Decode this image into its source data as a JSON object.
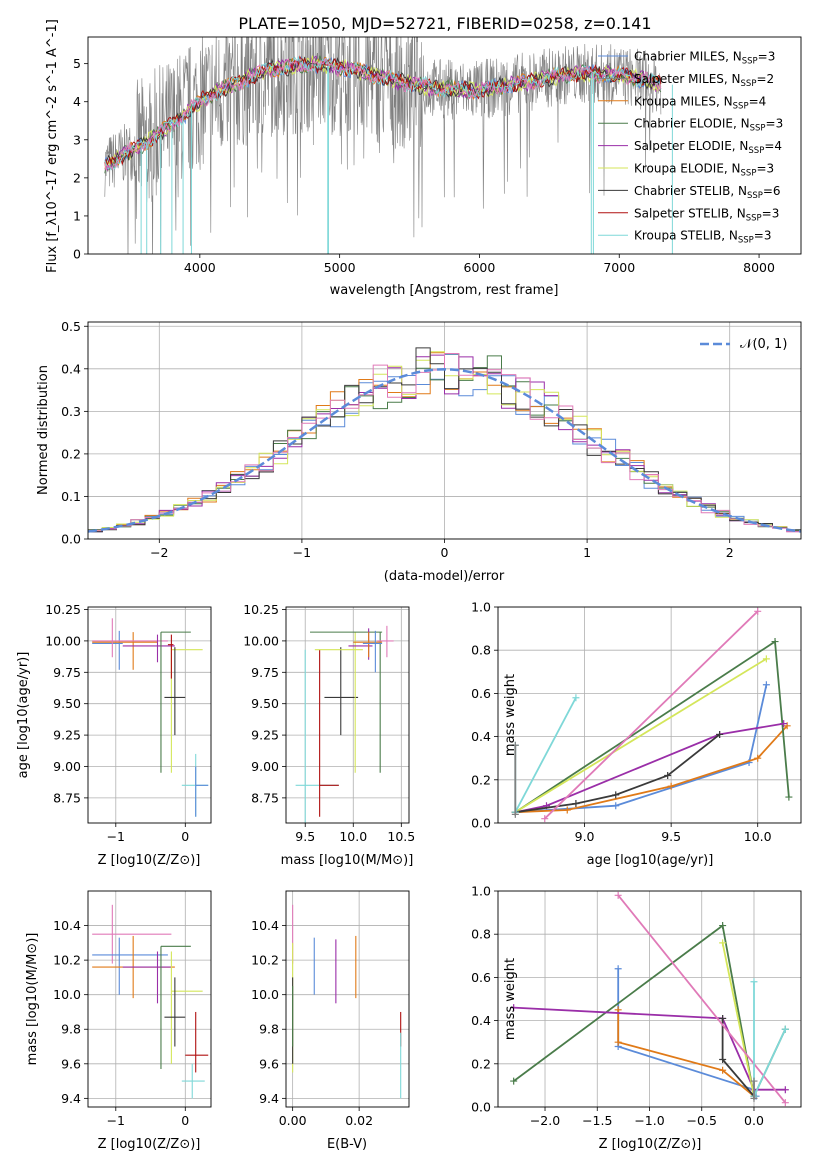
{
  "title": "PLATE=1050, MJD=52721, FIBERID=0258, z=0.141",
  "colors": {
    "Chabrier MILES": "#5b8bd9",
    "Salpeter MILES": "#808080",
    "Kroupa MILES": "#e07a18",
    "Chabrier ELODIE": "#4a7c4a",
    "Salpeter ELODIE": "#9a2ea8",
    "Kroupa ELODIE": "#d4e65a",
    "Chabrier STELIB": "#3a3a3a",
    "Salpeter STELIB": "#b01010",
    "Kroupa STELIB": "#7fd8d8",
    "pink": "#e07ab8"
  },
  "chart_data": [
    {
      "id": "spectrum",
      "type": "line",
      "xlabel": "wavelength [Angstrom, rest frame]",
      "ylabel": "Flux [f_λ10^-17 erg cm^-2 s^-1 A^-1]",
      "xlim": [
        3200,
        8300
      ],
      "ylim": [
        0,
        5.7
      ],
      "xticks": [
        4000,
        5000,
        6000,
        7000,
        8000
      ],
      "yticks": [
        0,
        1,
        2,
        3,
        4,
        5
      ],
      "legend_position": "upper right",
      "legend": [
        "Chabrier MILES, N_SSP=3",
        "Salpeter MILES, N_SSP=2",
        "Kroupa MILES, N_SSP=4",
        "Chabrier ELODIE, N_SSP=3",
        "Salpeter ELODIE, N_SSP=4",
        "Kroupa ELODIE, N_SSP=3",
        "Chabrier STELIB, N_SSP=6",
        "Salpeter STELIB, N_SSP=3",
        "Kroupa STELIB, N_SSP=3"
      ],
      "continuum": {
        "x": [
          3320,
          3450,
          3600,
          3800,
          4000,
          4200,
          4500,
          4800,
          5100,
          5400,
          5700,
          6000,
          6300,
          6600,
          6800,
          7000,
          7200,
          7300
        ],
        "y": [
          2.3,
          2.6,
          2.9,
          3.4,
          4.0,
          4.4,
          4.85,
          5.0,
          4.85,
          4.55,
          4.35,
          4.3,
          4.5,
          4.7,
          4.75,
          4.7,
          4.55,
          4.45
        ]
      }
    },
    {
      "id": "residuals",
      "type": "step",
      "xlabel": "(data-model)/error",
      "ylabel": "Normed distribution",
      "xlim": [
        -2.5,
        2.5
      ],
      "ylim": [
        0,
        0.51
      ],
      "xticks": [
        -2,
        -1,
        0,
        1,
        2
      ],
      "yticks": [
        0.0,
        0.1,
        0.2,
        0.3,
        0.4,
        0.5
      ],
      "legend": [
        "𝒩(0, 1)"
      ],
      "grid": true
    },
    {
      "id": "age_vs_Z",
      "type": "errorbar",
      "xlabel": "Z [log10(Z/Z⊙)]",
      "ylabel": "age [log10(age/yr)]",
      "xlim": [
        -1.4,
        0.37
      ],
      "ylim": [
        8.55,
        10.27
      ],
      "xticks": [
        -1,
        0
      ],
      "yticks": [
        8.75,
        9.0,
        9.25,
        9.5,
        9.75,
        10.0,
        10.25
      ],
      "points": [
        {
          "c": "Chabrier MILES",
          "x": -0.95,
          "y": 9.98,
          "xl": -1.34,
          "xh": -0.9,
          "yl": 9.77,
          "yh": 10.08
        },
        {
          "c": "Kroupa MILES",
          "x": -0.75,
          "y": 9.99,
          "xl": -1.34,
          "xh": -0.4,
          "yl": 9.77,
          "yh": 10.07
        },
        {
          "c": "pink",
          "x": -1.05,
          "y": 10.0,
          "xl": -1.34,
          "xh": -0.25,
          "yl": 9.87,
          "yh": 10.18
        },
        {
          "c": "Salpeter ELODIE",
          "x": -0.4,
          "y": 9.96,
          "xl": -0.9,
          "xh": -0.15,
          "yl": 9.83,
          "yh": 10.05
        },
        {
          "c": "Chabrier ELODIE",
          "x": -0.35,
          "y": 10.07,
          "xl": -0.35,
          "xh": 0.08,
          "yl": 8.95,
          "yh": 10.07
        },
        {
          "c": "Kroupa ELODIE",
          "x": -0.2,
          "y": 9.93,
          "xl": -0.2,
          "xh": 0.25,
          "yl": 8.95,
          "yh": 9.95
        },
        {
          "c": "Chabrier STELIB",
          "x": -0.15,
          "y": 9.55,
          "xl": -0.3,
          "xh": 0.0,
          "yl": 9.25,
          "yh": 9.95
        },
        {
          "c": "Salpeter STELIB",
          "x": -0.2,
          "y": 9.97,
          "xl": -0.25,
          "xh": -0.17,
          "yl": 9.7,
          "yh": 10.05
        },
        {
          "c": "Kroupa STELIB",
          "x": 0.15,
          "y": 8.85,
          "xl": -0.05,
          "xh": 0.33,
          "yl": 8.6,
          "yh": 9.1
        },
        {
          "c": "Chabrier MILES",
          "x": 0.15,
          "y": 8.85,
          "xl": 0.15,
          "xh": 0.33,
          "yl": 8.6,
          "yh": 9.0
        }
      ]
    },
    {
      "id": "age_vs_mass",
      "type": "errorbar",
      "xlabel": "mass [log10(M/M⊙)]",
      "ylabel": "",
      "xlim": [
        9.3,
        10.58
      ],
      "ylim": [
        8.55,
        10.27
      ],
      "xticks": [
        9.5,
        10.0,
        10.5
      ],
      "yticks": [
        8.75,
        9.0,
        9.25,
        9.5,
        9.75,
        10.0,
        10.25
      ],
      "points": [
        {
          "c": "Kroupa STELIB",
          "x": 9.5,
          "y": 8.85,
          "xl": 9.4,
          "xh": 9.85,
          "yl": 8.55,
          "yh": 9.93
        },
        {
          "c": "Salpeter STELIB",
          "x": 9.65,
          "y": 8.85,
          "xl": 9.65,
          "xh": 9.85,
          "yl": 8.6,
          "yh": 9.93
        },
        {
          "c": "Chabrier STELIB",
          "x": 9.87,
          "y": 9.55,
          "xl": 9.7,
          "xh": 10.05,
          "yl": 9.25,
          "yh": 9.95
        },
        {
          "c": "Kroupa ELODIE",
          "x": 10.02,
          "y": 9.93,
          "xl": 9.6,
          "xh": 10.1,
          "yl": 8.95,
          "yh": 10.07
        },
        {
          "c": "Chabrier ELODIE",
          "x": 10.28,
          "y": 10.07,
          "xl": 9.55,
          "xh": 10.3,
          "yl": 8.95,
          "yh": 10.07
        },
        {
          "c": "Salpeter ELODIE",
          "x": 10.16,
          "y": 9.96,
          "xl": 9.95,
          "xh": 10.2,
          "yl": 9.85,
          "yh": 10.1
        },
        {
          "c": "Kroupa MILES",
          "x": 10.16,
          "y": 9.99,
          "xl": 10.0,
          "xh": 10.3,
          "yl": 9.87,
          "yh": 10.07
        },
        {
          "c": "Chabrier MILES",
          "x": 10.23,
          "y": 9.98,
          "xl": 10.1,
          "xh": 10.3,
          "yl": 9.75,
          "yh": 10.08
        },
        {
          "c": "pink",
          "x": 10.35,
          "y": 10.0,
          "xl": 10.25,
          "xh": 10.42,
          "yl": 9.87,
          "yh": 10.12
        }
      ]
    },
    {
      "id": "weight_vs_age",
      "type": "line",
      "xlabel": "age  [log10(age/yr)]",
      "ylabel": "mass weight",
      "xlim": [
        8.5,
        10.25
      ],
      "ylim": [
        0,
        1.0
      ],
      "xticks": [
        9.0,
        9.5,
        10.0
      ],
      "yticks": [
        0.0,
        0.2,
        0.4,
        0.6,
        0.8,
        1.0
      ],
      "series": [
        {
          "c": "Chabrier MILES",
          "x": [
            8.6,
            9.18,
            9.95,
            10.05
          ],
          "y": [
            0.05,
            0.08,
            0.28,
            0.64
          ]
        },
        {
          "c": "Kroupa MILES",
          "x": [
            8.6,
            8.9,
            9.5,
            10.0,
            10.17
          ],
          "y": [
            0.05,
            0.06,
            0.17,
            0.3,
            0.45
          ]
        },
        {
          "c": "Chabrier ELODIE",
          "x": [
            8.6,
            10.1,
            10.18
          ],
          "y": [
            0.05,
            0.84,
            0.12
          ]
        },
        {
          "c": "Salpeter ELODIE",
          "x": [
            8.6,
            8.78,
            9.78,
            10.15
          ],
          "y": [
            0.05,
            0.08,
            0.41,
            0.46
          ]
        },
        {
          "c": "Kroupa ELODIE",
          "x": [
            8.6,
            10.05
          ],
          "y": [
            0.05,
            0.76
          ]
        },
        {
          "c": "Chabrier STELIB",
          "x": [
            8.6,
            8.95,
            9.18,
            9.48,
            9.78
          ],
          "y": [
            0.05,
            0.09,
            0.13,
            0.22,
            0.41
          ]
        },
        {
          "c": "pink",
          "x": [
            8.77,
            10.0
          ],
          "y": [
            0.02,
            0.98
          ]
        },
        {
          "c": "Kroupa STELIB",
          "x": [
            8.6,
            8.6,
            8.95
          ],
          "y": [
            0.36,
            0.05,
            0.58
          ]
        },
        {
          "c": "Salpeter MILES",
          "x": [
            8.6,
            8.6
          ],
          "y": [
            0.36,
            0.04
          ]
        }
      ]
    },
    {
      "id": "mass_vs_Z",
      "type": "errorbar",
      "xlabel": "Z [log10(Z/Z⊙)]",
      "ylabel": "mass [log10(M/M⊙)]",
      "xlim": [
        -1.4,
        0.37
      ],
      "ylim": [
        9.35,
        10.6
      ],
      "xticks": [
        -1,
        0
      ],
      "yticks": [
        9.4,
        9.6,
        9.8,
        10.0,
        10.2,
        10.4
      ],
      "points": [
        {
          "c": "pink",
          "x": -1.05,
          "y": 10.35,
          "xl": -1.34,
          "xh": -0.2,
          "yl": 10.18,
          "yh": 10.52
        },
        {
          "c": "Chabrier MILES",
          "x": -0.95,
          "y": 10.23,
          "xl": -1.34,
          "xh": -0.25,
          "yl": 10.0,
          "yh": 10.33
        },
        {
          "c": "Kroupa MILES",
          "x": -0.75,
          "y": 10.16,
          "xl": -1.34,
          "xh": -0.15,
          "yl": 9.98,
          "yh": 10.34
        },
        {
          "c": "Salpeter ELODIE",
          "x": -0.4,
          "y": 10.16,
          "xl": -0.9,
          "xh": -0.2,
          "yl": 9.95,
          "yh": 10.25
        },
        {
          "c": "Chabrier ELODIE",
          "x": -0.35,
          "y": 10.28,
          "xl": -0.35,
          "xh": 0.08,
          "yl": 9.57,
          "yh": 10.28
        },
        {
          "c": "Kroupa ELODIE",
          "x": -0.2,
          "y": 10.02,
          "xl": -0.2,
          "xh": 0.25,
          "yl": 9.6,
          "yh": 10.25
        },
        {
          "c": "Chabrier STELIB",
          "x": -0.15,
          "y": 9.87,
          "xl": -0.3,
          "xh": 0.0,
          "yl": 9.7,
          "yh": 10.1
        },
        {
          "c": "Salpeter STELIB",
          "x": 0.15,
          "y": 9.65,
          "xl": 0.0,
          "xh": 0.33,
          "yl": 9.55,
          "yh": 9.9
        },
        {
          "c": "Kroupa STELIB",
          "x": 0.1,
          "y": 9.5,
          "xl": -0.05,
          "xh": 0.28,
          "yl": 9.4,
          "yh": 9.6
        }
      ]
    },
    {
      "id": "mass_vs_ebv",
      "type": "errorbar",
      "xlabel": "E(B-V)",
      "ylabel": "",
      "xlim": [
        -0.002,
        0.035
      ],
      "ylim": [
        9.35,
        10.6
      ],
      "xticks": [
        0.0,
        0.02
      ],
      "yticks": [
        9.4,
        9.6,
        9.8,
        10.0,
        10.2,
        10.4
      ],
      "points": [
        {
          "c": "pink",
          "x": 0.0,
          "y": 10.35,
          "yl": 10.18,
          "yh": 10.52
        },
        {
          "c": "Kroupa ELODIE",
          "x": 0.0,
          "y": 10.02,
          "yl": 9.55,
          "yh": 10.3
        },
        {
          "c": "Chabrier STELIB",
          "x": 0.0,
          "y": 9.87,
          "yl": 9.6,
          "yh": 10.1
        },
        {
          "c": "Chabrier ELODIE",
          "x": 0.0,
          "y": 9.85,
          "yl": 9.7,
          "yh": 10.05
        },
        {
          "c": "Chabrier MILES",
          "x": 0.0065,
          "y": 10.16,
          "yl": 10.0,
          "yh": 10.33
        },
        {
          "c": "Salpeter ELODIE",
          "x": 0.013,
          "y": 10.13,
          "yl": 9.95,
          "yh": 10.32
        },
        {
          "c": "Kroupa MILES",
          "x": 0.019,
          "y": 10.15,
          "yl": 9.98,
          "yh": 10.34
        },
        {
          "c": "Salpeter STELIB",
          "x": 0.0325,
          "y": 9.8,
          "yl": 9.7,
          "yh": 9.9
        },
        {
          "c": "Kroupa STELIB",
          "x": 0.0325,
          "y": 9.5,
          "yl": 9.4,
          "yh": 9.78
        }
      ]
    },
    {
      "id": "weight_vs_Z",
      "type": "line",
      "xlabel": "Z [log10(Z/Z⊙)]",
      "ylabel": "mass weight",
      "xlim": [
        -2.45,
        0.45
      ],
      "ylim": [
        0,
        1.0
      ],
      "xticks": [
        -2.0,
        -1.5,
        -1.0,
        -0.5,
        0.0
      ],
      "yticks": [
        0.0,
        0.2,
        0.4,
        0.6,
        0.8,
        1.0
      ],
      "series": [
        {
          "c": "Chabrier MILES",
          "x": [
            -1.3,
            -1.3,
            0.0,
            0.02,
            0.0
          ],
          "y": [
            0.64,
            0.28,
            0.08,
            0.05,
            0.05
          ]
        },
        {
          "c": "Kroupa MILES",
          "x": [
            -1.3,
            -1.3,
            -0.3,
            0.0
          ],
          "y": [
            0.45,
            0.3,
            0.17,
            0.05
          ]
        },
        {
          "c": "Chabrier ELODIE",
          "x": [
            -2.3,
            -0.3,
            0.0,
            0.3
          ],
          "y": [
            0.12,
            0.84,
            0.05,
            0.36
          ]
        },
        {
          "c": "Salpeter ELODIE",
          "x": [
            -2.3,
            -0.3,
            0.0,
            0.3
          ],
          "y": [
            0.46,
            0.41,
            0.08,
            0.08
          ]
        },
        {
          "c": "Kroupa ELODIE",
          "x": [
            -0.3,
            0.0
          ],
          "y": [
            0.76,
            0.05
          ]
        },
        {
          "c": "Chabrier STELIB",
          "x": [
            -0.3,
            -0.3,
            0.0
          ],
          "y": [
            0.41,
            0.22,
            0.05
          ]
        },
        {
          "c": "pink",
          "x": [
            -1.3,
            0.3
          ],
          "y": [
            0.98,
            0.02
          ]
        },
        {
          "c": "Kroupa STELIB",
          "x": [
            0.0,
            0.0,
            0.3
          ],
          "y": [
            0.58,
            0.05,
            0.36
          ]
        },
        {
          "c": "Salpeter MILES",
          "x": [
            0.0,
            0.0
          ],
          "y": [
            0.12,
            0.04
          ]
        }
      ]
    }
  ]
}
